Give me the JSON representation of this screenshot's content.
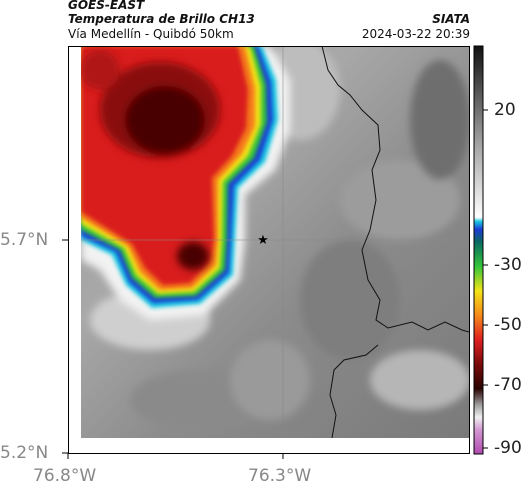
{
  "header": {
    "satellite": "GOES-EAST",
    "product": "Temperatura de Brillo CH13",
    "route": "Vía Medellín - Quibdó 50km",
    "org": "SIATA",
    "datetime": "2024-03-22 20:39"
  },
  "axes": {
    "lat_labels": [
      "5.7°N",
      "5.2°N"
    ],
    "lon_labels": [
      "76.8°W",
      "76.3°W"
    ]
  },
  "colorbar": {
    "tick_labels": [
      "20",
      "-30",
      "-50",
      "-70",
      "-90"
    ]
  },
  "marker": {
    "icon": "star-icon"
  },
  "colors": {
    "cold_core": "#4a0505",
    "red": "#d91e1e",
    "orange": "#f57a1a",
    "yellow": "#f2e418",
    "green": "#33c43a",
    "blue": "#1b3ad6",
    "cyan": "#18c8e0",
    "gray_light": "#c8c8c8",
    "gray_dark": "#6f6f6f"
  }
}
